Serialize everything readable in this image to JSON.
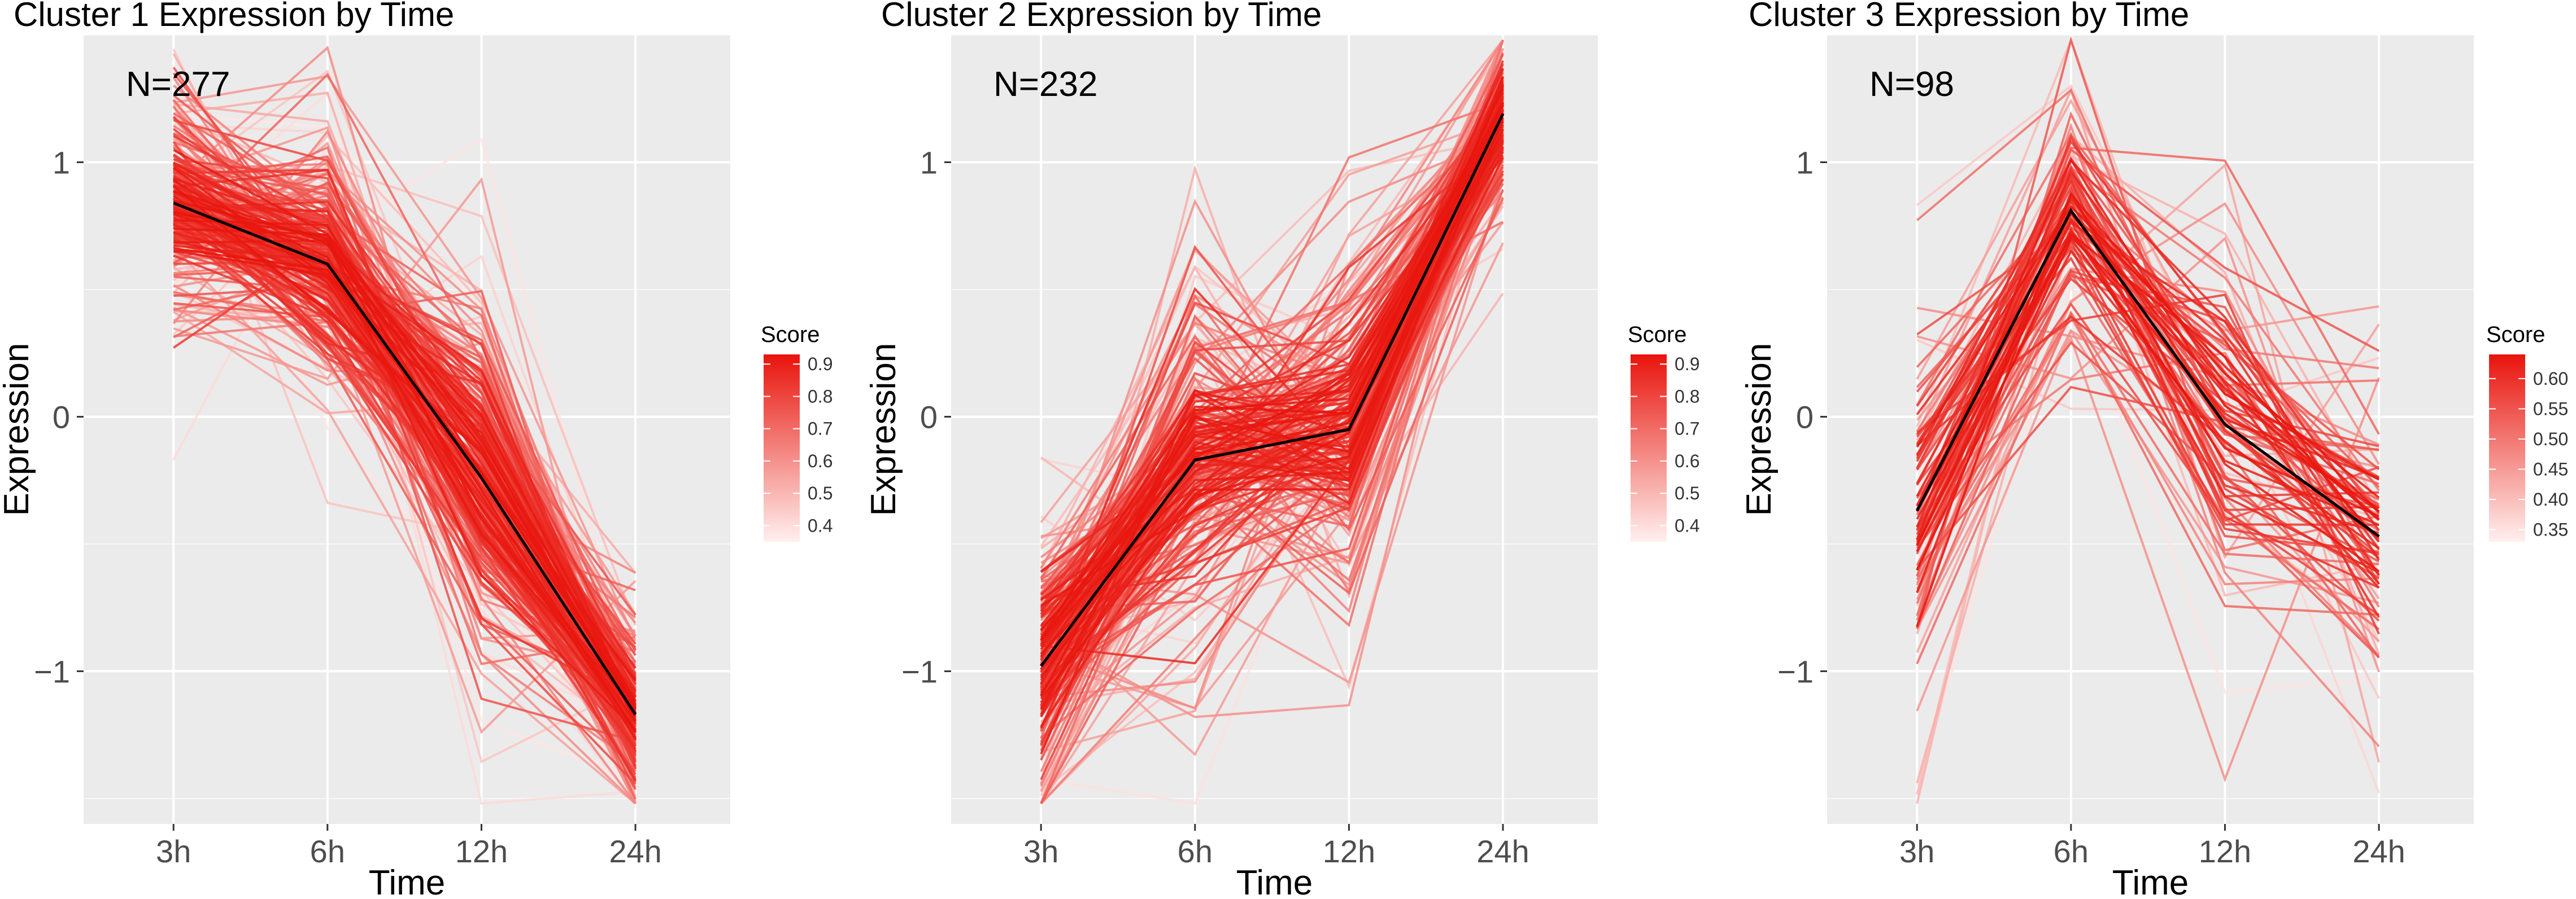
{
  "chart_data": [
    {
      "type": "line",
      "title": "Cluster 1 Expression by Time",
      "annotation": "N=277",
      "xlabel": "Time",
      "ylabel": "Expression",
      "categories": [
        "3h",
        "6h",
        "12h",
        "24h"
      ],
      "ylim": [
        -1.6,
        1.5
      ],
      "yticks": [
        -1,
        0,
        1
      ],
      "ytick_labels": [
        "−1",
        "0",
        "1"
      ],
      "n": 277,
      "centroid": [
        0.84,
        0.6,
        -0.24,
        -1.17
      ],
      "member_spread": [
        0.24,
        0.3,
        0.42,
        0.22
      ],
      "legend": {
        "title": "Score",
        "range": [
          0.35,
          0.93
        ],
        "ticks": [
          0.4,
          0.5,
          0.6,
          0.7,
          0.8,
          0.9
        ],
        "tick_labels": [
          "0.4",
          "0.5",
          "0.6",
          "0.7",
          "0.8",
          "0.9"
        ],
        "low_color": "#fff0ee",
        "high_color": "#e8140c"
      }
    },
    {
      "type": "line",
      "title": "Cluster 2 Expression by Time",
      "annotation": "N=232",
      "xlabel": "Time",
      "ylabel": "Expression",
      "categories": [
        "3h",
        "6h",
        "12h",
        "24h"
      ],
      "ylim": [
        -1.6,
        1.5
      ],
      "yticks": [
        -1,
        0,
        1
      ],
      "ytick_labels": [
        "−1",
        "0",
        "1"
      ],
      "n": 232,
      "centroid": [
        -0.98,
        -0.17,
        -0.05,
        1.19
      ],
      "member_spread": [
        0.28,
        0.4,
        0.38,
        0.22
      ],
      "legend": {
        "title": "Score",
        "range": [
          0.35,
          0.93
        ],
        "ticks": [
          0.4,
          0.5,
          0.6,
          0.7,
          0.8,
          0.9
        ],
        "tick_labels": [
          "0.4",
          "0.5",
          "0.6",
          "0.7",
          "0.8",
          "0.9"
        ],
        "low_color": "#fff0ee",
        "high_color": "#e8140c"
      }
    },
    {
      "type": "line",
      "title": "Cluster 3 Expression by Time",
      "annotation": "N=98",
      "xlabel": "Time",
      "ylabel": "Expression",
      "categories": [
        "3h",
        "6h",
        "12h",
        "24h"
      ],
      "ylim": [
        -1.6,
        1.5
      ],
      "yticks": [
        -1,
        0,
        1
      ],
      "ytick_labels": [
        "−1",
        "0",
        "1"
      ],
      "n": 98,
      "centroid": [
        -0.37,
        0.81,
        -0.03,
        -0.47
      ],
      "member_spread": [
        0.45,
        0.35,
        0.5,
        0.38
      ],
      "legend": {
        "title": "Score",
        "range": [
          0.33,
          0.64
        ],
        "ticks": [
          0.35,
          0.4,
          0.45,
          0.5,
          0.55,
          0.6
        ],
        "tick_labels": [
          "0.35",
          "0.40",
          "0.45",
          "0.50",
          "0.55",
          "0.60"
        ],
        "low_color": "#fff0ee",
        "high_color": "#e8140c"
      }
    }
  ],
  "colors": {
    "panel_bg": "#ebebeb",
    "grid": "#ffffff",
    "centroid_line": "#000000",
    "tick_text": "#4d4d4d"
  }
}
